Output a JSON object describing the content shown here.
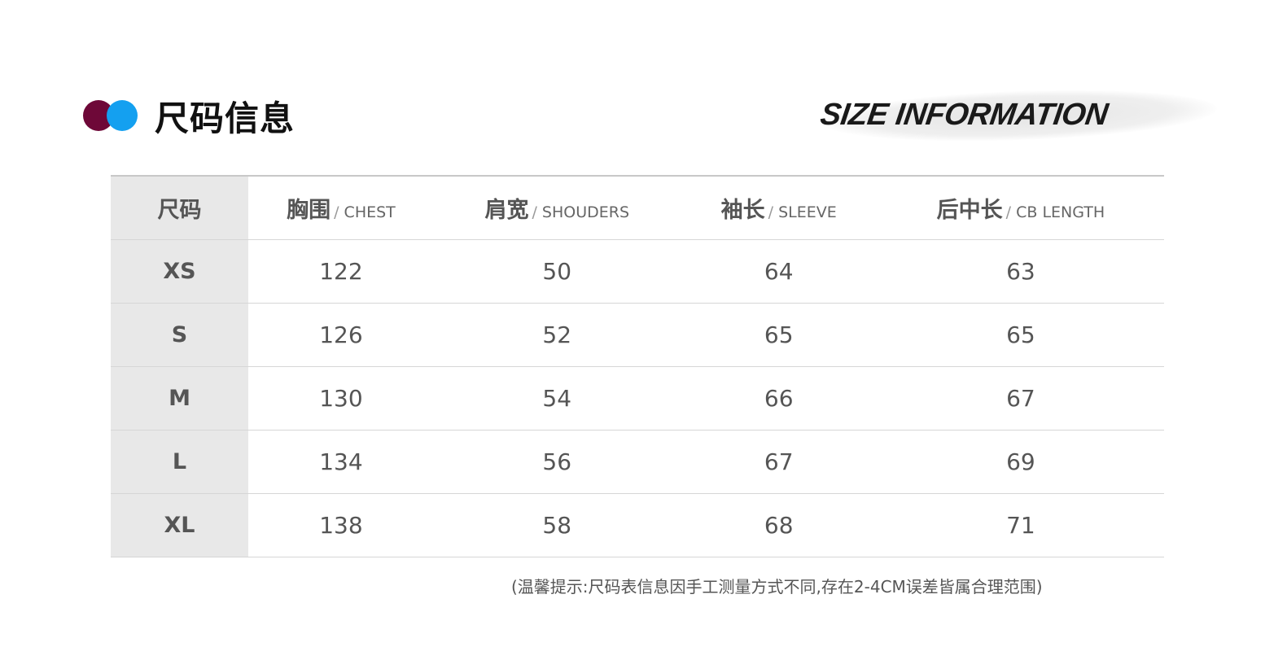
{
  "header": {
    "title": "尺码信息",
    "title_en": "SIZE INFORMATION",
    "accent_colors": [
      "#6e0838",
      "#14a0f0"
    ]
  },
  "table": {
    "columns": [
      {
        "zh": "尺码",
        "en": ""
      },
      {
        "zh": "胸围",
        "en": "CHEST"
      },
      {
        "zh": "肩宽",
        "en": "SHOUDERS"
      },
      {
        "zh": "袖长",
        "en": "SLEEVE"
      },
      {
        "zh": "后中长",
        "en": "CB LENGTH"
      }
    ],
    "rows": [
      {
        "size": "XS",
        "values": [
          "122",
          "50",
          "64",
          "63"
        ]
      },
      {
        "size": "S",
        "values": [
          "126",
          "52",
          "65",
          "65"
        ]
      },
      {
        "size": "M",
        "values": [
          "130",
          "54",
          "66",
          "67"
        ]
      },
      {
        "size": "L",
        "values": [
          "134",
          "56",
          "67",
          "69"
        ]
      },
      {
        "size": "XL",
        "values": [
          "138",
          "58",
          "68",
          "71"
        ]
      }
    ]
  },
  "note": "(温馨提示:尺码表信息因手工测量方式不同,存在2-4CM误差皆属合理范围)"
}
